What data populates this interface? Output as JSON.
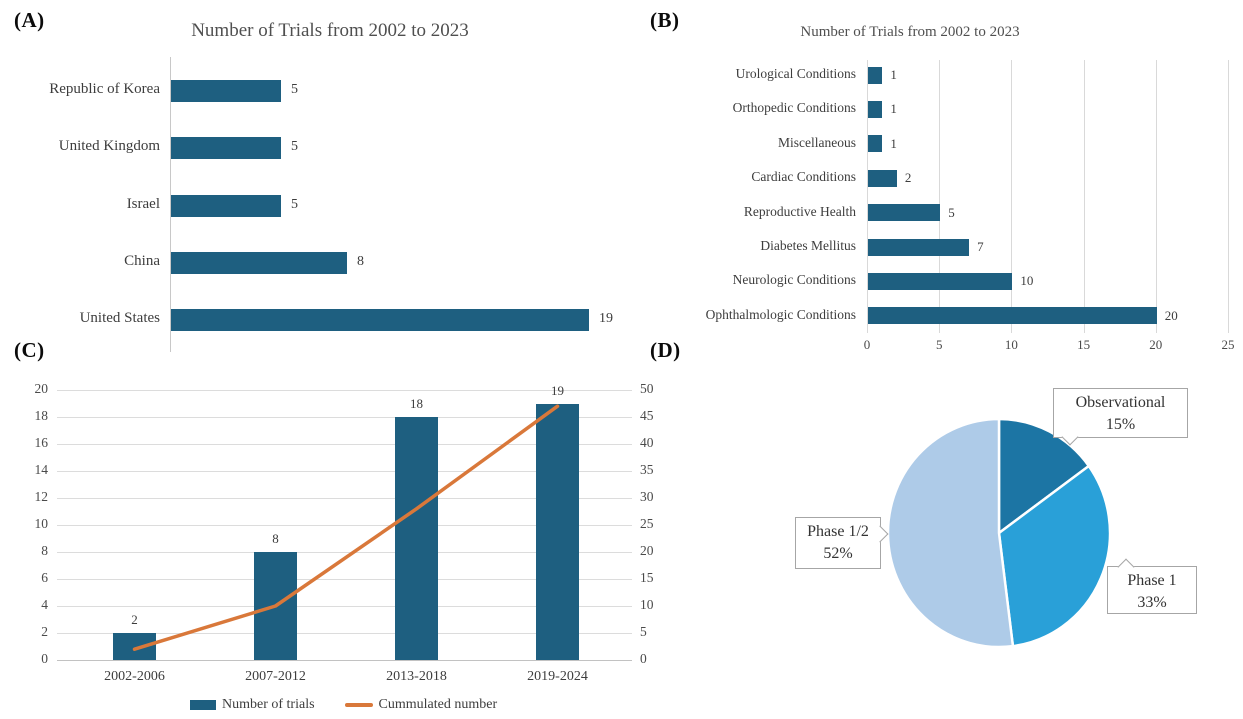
{
  "colors": {
    "bar": "#1E5F80",
    "line": "#D9783A",
    "grid": "#D9D9D9",
    "axis": "#C2C2C2",
    "pie_dark": "#1C75A4",
    "pie_mid": "#29A0D8",
    "pie_light": "#AECBE8"
  },
  "chart_data": [
    {
      "id": "A",
      "panel_label": "(A)",
      "type": "bar",
      "orientation": "horizontal",
      "title": "Number of Trials from 2002 to 2023",
      "categories": [
        "Republic of Korea",
        "United Kingdom",
        "Israel",
        "China",
        "United States"
      ],
      "values": [
        5,
        5,
        5,
        8,
        19
      ],
      "xlim": [
        0,
        20
      ],
      "grid": false,
      "data_labels": true,
      "bar_color": "#1E5F80"
    },
    {
      "id": "B",
      "panel_label": "(B)",
      "type": "bar",
      "orientation": "horizontal",
      "title": "Number of Trials from 2002 to 2023",
      "categories": [
        "Urological Conditions",
        "Orthopedic Conditions",
        "Miscellaneous",
        "Cardiac Conditions",
        "Reproductive Health",
        "Diabetes Mellitus",
        "Neurologic Conditions",
        "Ophthalmologic Conditions"
      ],
      "values": [
        1,
        1,
        1,
        2,
        5,
        7,
        10,
        20
      ],
      "x_ticks": [
        0,
        5,
        10,
        15,
        20,
        25
      ],
      "xlim": [
        0,
        25
      ],
      "grid": true,
      "data_labels": true,
      "bar_color": "#1E5F80"
    },
    {
      "id": "C",
      "panel_label": "(C)",
      "type": "bar+line combo",
      "title": "",
      "categories": [
        "2002-2006",
        "2007-2012",
        "2013-2018",
        "2019-2024"
      ],
      "series": [
        {
          "name": "Number of trials",
          "type": "bar",
          "axis": "left",
          "values": [
            2,
            8,
            18,
            19
          ],
          "color": "#1E5F80"
        },
        {
          "name": "Cummulated number",
          "type": "line",
          "axis": "right",
          "values": [
            2,
            10,
            28,
            47
          ],
          "color": "#D9783A"
        }
      ],
      "left_axis": {
        "min": 0,
        "max": 20,
        "step": 2
      },
      "right_axis": {
        "min": 0,
        "max": 50,
        "step": 5
      },
      "grid": true,
      "data_labels": true,
      "legend_position": "bottom"
    },
    {
      "id": "D",
      "panel_label": "(D)",
      "type": "pie",
      "start_angle_deg": 0,
      "clockwise": true,
      "slices": [
        {
          "label": "Observational",
          "pct": 15,
          "pct_label": "15%",
          "color": "#1C75A4"
        },
        {
          "label": "Phase 1",
          "pct": 33,
          "pct_label": "33%",
          "color": "#29A0D8"
        },
        {
          "label": "Phase 1/2",
          "pct": 52,
          "pct_label": "52%",
          "color": "#AECBE8"
        }
      ]
    }
  ]
}
